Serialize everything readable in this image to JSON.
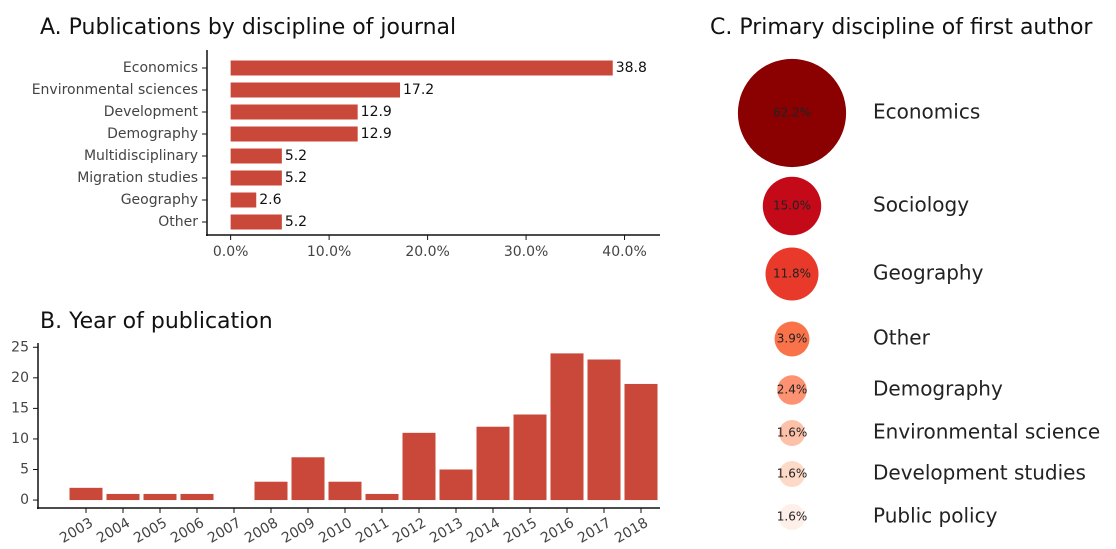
{
  "chart_data": [
    {
      "type": "hbar",
      "title": "A. Publications by discipline of journal",
      "categories": [
        "Economics",
        "Environmental sciences",
        "Development",
        "Demography",
        "Multidisciplinary",
        "Migration studies",
        "Geography",
        "Other"
      ],
      "values": [
        38.8,
        17.2,
        12.9,
        12.9,
        5.2,
        5.2,
        2.6,
        5.2
      ],
      "color": "#c9483a",
      "xlim": [
        -2.4,
        43.6
      ],
      "xticks": [
        {
          "value": 0,
          "label": "0.0%"
        },
        {
          "value": 10,
          "label": "10.0%"
        },
        {
          "value": 20,
          "label": "20.0%"
        },
        {
          "value": 30,
          "label": "30.0%"
        },
        {
          "value": 40,
          "label": "40.0%"
        }
      ],
      "grid": false
    },
    {
      "type": "bar",
      "title": "B. Year of publication",
      "categories": [
        "2003",
        "2004",
        "2005",
        "2006",
        "2007",
        "2008",
        "2009",
        "2010",
        "2011",
        "2012",
        "2013",
        "2014",
        "2015",
        "2016",
        "2017",
        "2018"
      ],
      "values": [
        2,
        1,
        1,
        1,
        0,
        3,
        7,
        3,
        1,
        11,
        5,
        12,
        14,
        24,
        23,
        19
      ],
      "color": "#c9483a",
      "ylim": [
        -1.3,
        25.7
      ],
      "yticks": [
        0,
        5,
        10,
        15,
        20,
        25
      ],
      "grid": false
    },
    {
      "type": "bubble",
      "title": "C. Primary discipline of first author",
      "categories": [
        "Economics",
        "Sociology",
        "Geography",
        "Other",
        "Demography",
        "Environmental science",
        "Development studies",
        "Public policy"
      ],
      "values": [
        62.2,
        15.0,
        11.8,
        3.9,
        2.4,
        1.6,
        1.6,
        1.6
      ],
      "value_labels": [
        "62.2%",
        "15.0%",
        "11.8%",
        "3.9%",
        "2.4%",
        "1.6%",
        "1.6%",
        "1.6%"
      ],
      "colors": [
        "#8b0000",
        "#c40a19",
        "#e8392a",
        "#f9724a",
        "#fc9272",
        "#fdc0a8",
        "#fdd9c8",
        "#fef0e8"
      ]
    }
  ]
}
